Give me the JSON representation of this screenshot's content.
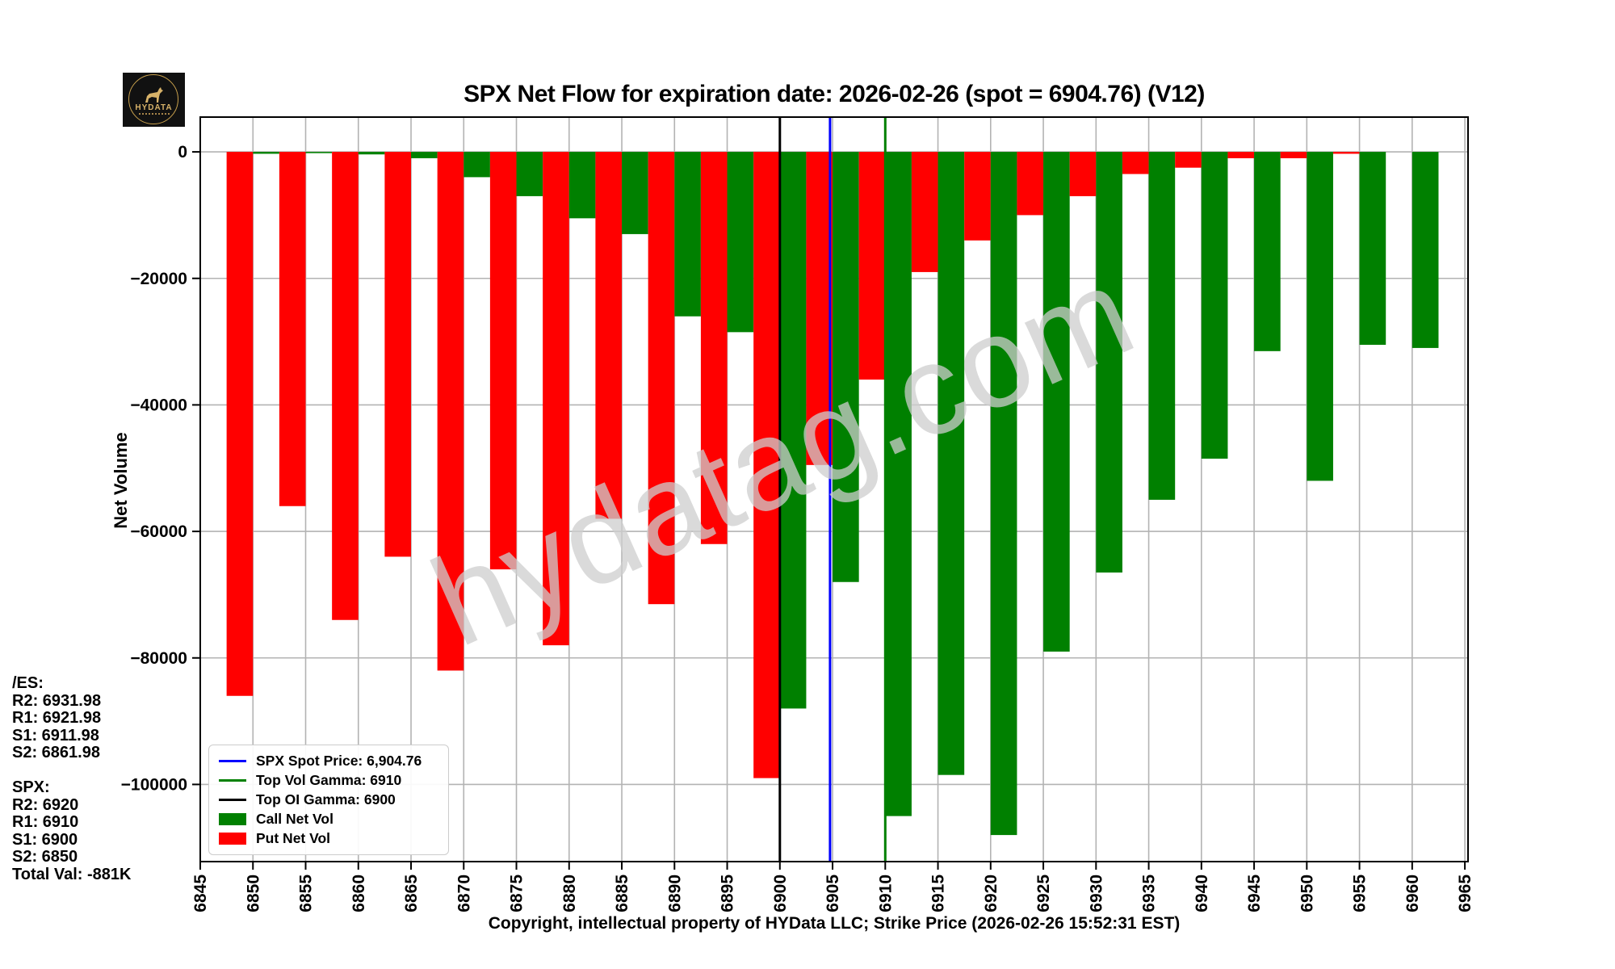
{
  "logo": {
    "brand": "HYDATA"
  },
  "header": {
    "title": "SPX Net Flow for expiration date: 2026-02-26 (spot = 6904.76) (V12)"
  },
  "watermark": {
    "text": "hydatag.com"
  },
  "annotations": {
    "lines": [
      "/ES:",
      "R2: 6931.98",
      "R1: 6921.98",
      "S1: 6911.98",
      "S2: 6861.98",
      "",
      "SPX:",
      "R2: 6920",
      "R1: 6910",
      "S1: 6900",
      "S2: 6850",
      "Total Val: -881K"
    ]
  },
  "legend": {
    "items": [
      {
        "type": "line",
        "color": "#0000ff",
        "label": "SPX Spot Price: 6,904.76"
      },
      {
        "type": "line",
        "color": "#008000",
        "label": "Top Vol Gamma: 6910"
      },
      {
        "type": "line",
        "color": "#000000",
        "label": "Top OI Gamma: 6900"
      },
      {
        "type": "patch",
        "color": "#008000",
        "label": "Call Net Vol"
      },
      {
        "type": "patch",
        "color": "#ff0000",
        "label": "Put Net Vol"
      }
    ]
  },
  "chart_data": {
    "type": "bar",
    "title": "SPX Net Flow for expiration date: 2026-02-26 (spot = 6904.76) (V12)",
    "xlabel": "Copyright, intellectual property of HYData LLC; Strike Price (2026-02-26 15:52:31 EST)",
    "ylabel": "Net Volume",
    "categories": [
      6850,
      6855,
      6860,
      6865,
      6870,
      6875,
      6880,
      6885,
      6890,
      6895,
      6900,
      6905,
      6910,
      6915,
      6920,
      6925,
      6930,
      6935,
      6940,
      6945,
      6950,
      6955,
      6960
    ],
    "series": [
      {
        "name": "Call Net Vol",
        "color": "#008000",
        "values": [
          -300,
          -200,
          -400,
          -1000,
          -4000,
          -7000,
          -10500,
          -13000,
          -26000,
          -28500,
          -88000,
          -68000,
          -105000,
          -98500,
          -108000,
          -79000,
          -66500,
          -55000,
          -48500,
          -31500,
          -52000,
          -30500,
          -31000
        ]
      },
      {
        "name": "Put Net Vol",
        "color": "#ff0000",
        "values": [
          -86000,
          -56000,
          -74000,
          -64000,
          -82000,
          -66000,
          -78000,
          -58000,
          -71500,
          -62000,
          -99000,
          -49500,
          -36000,
          -19000,
          -14000,
          -10000,
          -7000,
          -3500,
          -2500,
          -1000,
          -1000,
          -300,
          0
        ]
      }
    ],
    "bar_width_strikes": 2.5,
    "vlines": [
      {
        "name": "top-oi-gamma",
        "x": 6900,
        "color": "#000000",
        "label": "Top OI Gamma: 6900"
      },
      {
        "name": "top-vol-gamma",
        "x": 6910,
        "color": "#008000",
        "label": "Top Vol Gamma: 6910"
      },
      {
        "name": "spx-spot-price",
        "x": 6904.76,
        "color": "#0000ff",
        "label": "SPX Spot Price: 6,904.76"
      }
    ],
    "xlim": [
      6845,
      6965.3
    ],
    "ylim": [
      -112200,
      5500
    ],
    "x_ticks": [
      6845,
      6850,
      6855,
      6860,
      6865,
      6870,
      6875,
      6880,
      6885,
      6890,
      6895,
      6900,
      6905,
      6910,
      6915,
      6920,
      6925,
      6930,
      6935,
      6940,
      6945,
      6950,
      6955,
      6960,
      6965
    ],
    "y_ticks": [
      0,
      -20000,
      -40000,
      -60000,
      -80000,
      -100000
    ],
    "y_tick_labels": [
      "0",
      "−20000",
      "−40000",
      "−60000",
      "−80000",
      "−100000"
    ],
    "grid": true,
    "grid_color": "#b3b3b3",
    "legend_position": "lower-left"
  }
}
